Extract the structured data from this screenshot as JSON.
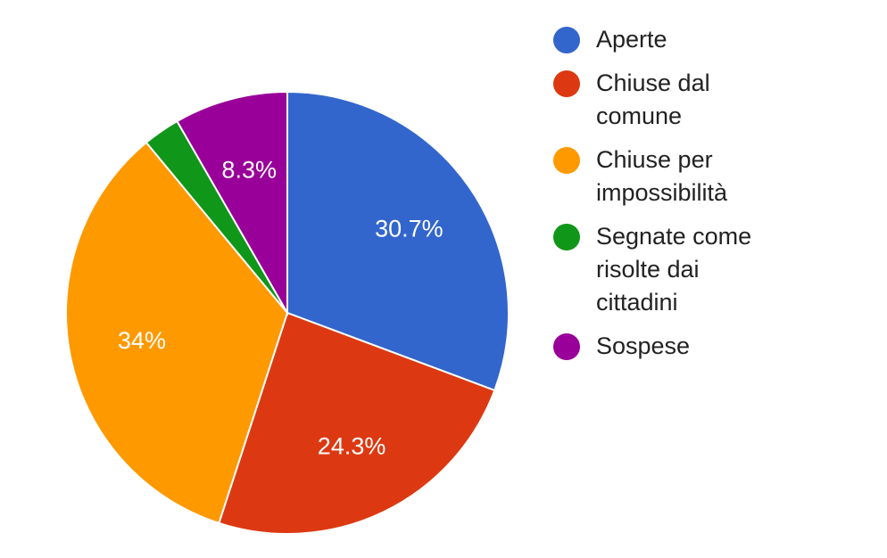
{
  "chart_data": {
    "type": "pie",
    "categories": [
      "Aperte",
      "Chiuse dal comune",
      "Chiuse per impossibilità",
      "Segnate come risolte dai cittadini",
      "Sospese"
    ],
    "values": [
      30.7,
      24.3,
      34.0,
      2.7,
      8.3
    ],
    "colors": [
      "#3366cc",
      "#dc3912",
      "#ff9900",
      "#109618",
      "#990099"
    ],
    "data_labels": [
      "30.7%",
      "24.3%",
      "34%",
      "",
      "8.3%"
    ],
    "legend_labels": [
      "Aperte",
      "Chiuse dal\ncomune",
      "Chiuse per\nimpossibilità",
      "Segnate come\nrisolte dai\ncittadini",
      "Sospese"
    ],
    "legend_position": "right",
    "start_angle": "12 o'clock",
    "direction": "clockwise"
  }
}
